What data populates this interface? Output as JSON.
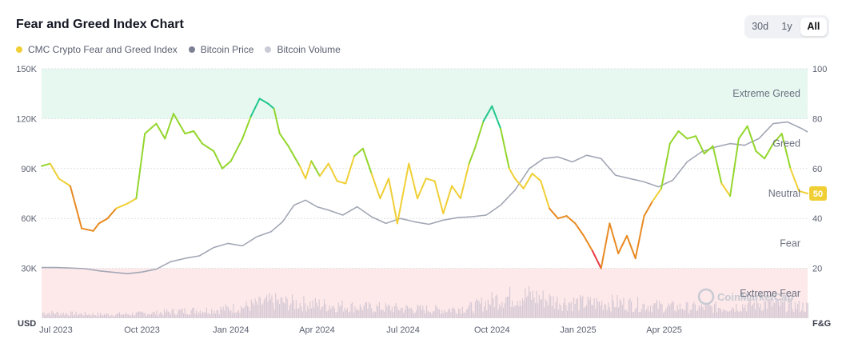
{
  "title": "Fear and Greed Index Chart",
  "range_buttons": [
    {
      "label": "30d",
      "active": false
    },
    {
      "label": "1y",
      "active": false
    },
    {
      "label": "All",
      "active": true
    }
  ],
  "legend": [
    {
      "label": "CMC Crypto Fear and Greed Index",
      "color": "#f0cf35"
    },
    {
      "label": "Bitcoin Price",
      "color": "#7d8193"
    },
    {
      "label": "Bitcoin Volume",
      "color": "#c9ccd6"
    }
  ],
  "watermark": "CoinMarketCap",
  "chart_data": {
    "type": "line",
    "title": "Fear and Greed Index Chart",
    "x_tick_labels": [
      "Jul 2023",
      "Oct 2023",
      "Jan 2024",
      "Apr 2024",
      "Jul 2024",
      "Oct 2024",
      "Jan 2025",
      "Apr 2025"
    ],
    "x_range": [
      0,
      26.7
    ],
    "x_ticks": [
      0.5,
      3.5,
      6.6,
      9.6,
      12.6,
      15.7,
      18.7,
      21.7
    ],
    "left_axis": {
      "label": "USD",
      "ticks": [
        30000,
        60000,
        90000,
        120000,
        150000
      ],
      "tick_labels": [
        "30K",
        "60K",
        "90K",
        "120K",
        "150K"
      ],
      "range": [
        0,
        150000
      ]
    },
    "right_axis": {
      "label": "F&G",
      "ticks": [
        20,
        40,
        60,
        80,
        100
      ],
      "tick_labels": [
        "20",
        "40",
        "60",
        "80",
        "100"
      ],
      "range": [
        0,
        100
      ]
    },
    "zones": [
      {
        "name": "Extreme Greed",
        "from": 80,
        "to": 100,
        "color": "#e6f8f0"
      },
      {
        "name": "Greed",
        "from": 60,
        "to": 80
      },
      {
        "name": "Neutral",
        "from": 40,
        "to": 60
      },
      {
        "name": "Fear",
        "from": 20,
        "to": 40
      },
      {
        "name": "Extreme Fear",
        "from": 0,
        "to": 20,
        "color": "#fde9ea"
      }
    ],
    "current_value": 50,
    "series": [
      {
        "name": "CMC Crypto Fear and Greed Index",
        "axis": "right",
        "x": [
          0,
          0.3,
          0.6,
          1.0,
          1.4,
          1.8,
          2.0,
          2.3,
          2.6,
          3.0,
          3.3,
          3.6,
          3.8,
          4.0,
          4.3,
          4.6,
          5.0,
          5.3,
          5.6,
          6.0,
          6.3,
          6.6,
          7.0,
          7.3,
          7.6,
          7.9,
          8.1,
          8.3,
          8.6,
          9.0,
          9.2,
          9.4,
          9.7,
          10.0,
          10.3,
          10.6,
          10.9,
          11.2,
          11.5,
          11.8,
          12.1,
          12.4,
          12.8,
          13.1,
          13.4,
          13.7,
          14.0,
          14.3,
          14.6,
          14.9,
          15.1,
          15.4,
          15.7,
          16.0,
          16.3,
          16.5,
          16.8,
          17.1,
          17.4,
          17.7,
          18.0,
          18.3,
          18.6,
          18.9,
          19.2,
          19.5,
          19.8,
          20.1,
          20.4,
          20.7,
          21.0,
          21.3,
          21.6,
          21.9,
          22.2,
          22.5,
          22.8,
          23.1,
          23.4,
          23.7,
          24.0,
          24.3,
          24.6,
          24.9,
          25.2,
          25.5,
          25.8,
          26.1,
          26.4,
          26.7
        ],
        "values": [
          61,
          62,
          56,
          53,
          36,
          35,
          38,
          40,
          44,
          46,
          48,
          74,
          76,
          78,
          72,
          82,
          74,
          75,
          70,
          67,
          60,
          63,
          72,
          81,
          88,
          86,
          84,
          74,
          69,
          61,
          56,
          63,
          57,
          62,
          55,
          54,
          65,
          68,
          58,
          48,
          56,
          38,
          62,
          48,
          56,
          55,
          42,
          53,
          48,
          62,
          68,
          79,
          85,
          76,
          60,
          56,
          52,
          58,
          55,
          44,
          40,
          41,
          38,
          33,
          27,
          20,
          38,
          26,
          33,
          24,
          41,
          47,
          52,
          70,
          75,
          72,
          73,
          66,
          69,
          54,
          49,
          72,
          77,
          67,
          64,
          70,
          74,
          60,
          51,
          50
        ]
      },
      {
        "name": "Bitcoin Price",
        "axis": "left",
        "x": [
          0,
          0.5,
          1.0,
          1.5,
          2.0,
          2.5,
          3.0,
          3.5,
          4.0,
          4.5,
          5.0,
          5.5,
          6.0,
          6.5,
          7.0,
          7.5,
          8.0,
          8.4,
          8.8,
          9.2,
          9.6,
          10.0,
          10.5,
          11.0,
          11.5,
          12.0,
          12.5,
          13.0,
          13.5,
          14.0,
          14.5,
          15.0,
          15.5,
          16.0,
          16.5,
          17.0,
          17.5,
          18.0,
          18.5,
          19.0,
          19.5,
          20.0,
          20.5,
          21.0,
          21.5,
          22.0,
          22.5,
          23.0,
          23.5,
          24.0,
          24.5,
          25.0,
          25.5,
          26.0,
          26.5,
          26.7
        ],
        "values": [
          30500,
          30500,
          30200,
          29800,
          28500,
          27600,
          26800,
          27800,
          29500,
          34000,
          36000,
          37500,
          42500,
          45000,
          43500,
          49000,
          52000,
          58000,
          68000,
          71000,
          67000,
          65000,
          62000,
          67000,
          61000,
          57000,
          60000,
          58000,
          56500,
          59000,
          60500,
          61000,
          62000,
          68000,
          77000,
          90000,
          96000,
          97000,
          94000,
          98000,
          96000,
          86000,
          84000,
          82000,
          79000,
          83000,
          94000,
          100000,
          103000,
          105000,
          104000,
          108000,
          117000,
          118000,
          114000,
          112000
        ]
      },
      {
        "name": "Bitcoin Volume",
        "axis": "volume",
        "x": [
          0,
          1,
          2,
          3,
          4,
          5,
          6,
          7,
          8,
          9,
          10,
          11,
          12,
          13,
          14,
          15,
          16,
          17,
          18,
          19,
          20,
          21,
          22,
          23,
          24,
          25,
          26,
          26.7
        ],
        "values": [
          0.15,
          0.12,
          0.1,
          0.11,
          0.14,
          0.2,
          0.22,
          0.3,
          0.45,
          0.4,
          0.35,
          0.3,
          0.28,
          0.25,
          0.22,
          0.3,
          0.55,
          0.6,
          0.45,
          0.4,
          0.42,
          0.35,
          0.3,
          0.28,
          0.3,
          0.4,
          0.35,
          0.3
        ]
      }
    ]
  }
}
